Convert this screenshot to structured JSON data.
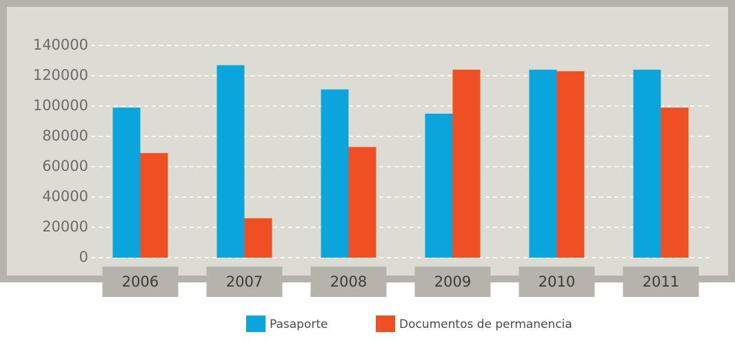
{
  "chart_data": {
    "type": "bar",
    "categories": [
      "2006",
      "2007",
      "2008",
      "2009",
      "2010",
      "2011"
    ],
    "series": [
      {
        "name": "Pasaporte",
        "color": "#0ba5de",
        "values": [
          99000,
          127000,
          111000,
          95000,
          124000,
          124000
        ]
      },
      {
        "name": "Documentos de permanencia",
        "color": "#f04e23",
        "values": [
          69000,
          26000,
          73000,
          124000,
          123000,
          99000
        ]
      }
    ],
    "ylim": [
      0,
      140000
    ],
    "yticks": [
      0,
      20000,
      40000,
      60000,
      80000,
      100000,
      120000,
      140000
    ],
    "grid": true
  }
}
